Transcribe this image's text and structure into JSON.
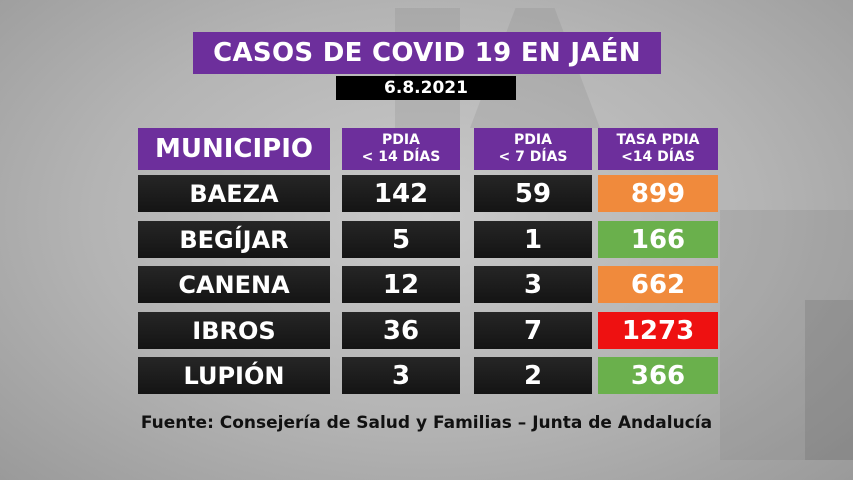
{
  "header": {
    "title": "CASOS DE COVID 19 EN JAÉN",
    "date": "6.8.2021"
  },
  "chart_data": {
    "type": "table",
    "columns": [
      {
        "label": "MUNICIPIO"
      },
      {
        "line1": "PDIA",
        "line2": "< 14 DÍAS"
      },
      {
        "line1": "PDIA",
        "line2": "< 7 DÍAS"
      },
      {
        "line1": "TASA PDIA",
        "line2": "<14 DÍAS"
      }
    ],
    "rows": [
      {
        "municipio": "BAEZA",
        "pdia14": "142",
        "pdia7": "59",
        "tasa": "899",
        "tasa_color": "#f08a3c"
      },
      {
        "municipio": "BEGÍJAR",
        "pdia14": "5",
        "pdia7": "1",
        "tasa": "166",
        "tasa_color": "#6ab04c"
      },
      {
        "municipio": "CANENA",
        "pdia14": "12",
        "pdia7": "3",
        "tasa": "662",
        "tasa_color": "#f08a3c"
      },
      {
        "municipio": "IBROS",
        "pdia14": "36",
        "pdia7": "7",
        "tasa": "1273",
        "tasa_color": "#ee1111"
      },
      {
        "municipio": "LUPIÓN",
        "pdia14": "3",
        "pdia7": "2",
        "tasa": "366",
        "tasa_color": "#6ab04c"
      }
    ]
  },
  "footer": {
    "source": "Fuente: Consejería de Salud y Familias – Junta de Andalucía"
  }
}
